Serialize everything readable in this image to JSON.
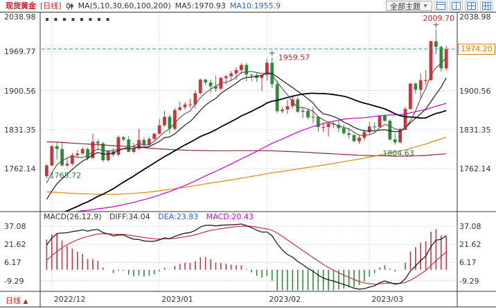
{
  "toolbar": {
    "symbol": "现货黄金",
    "period_tag": "[日线]",
    "ma_settings_label": "MA(5,10,30,60,100,200)",
    "ma5_label": "MA5:1970.93",
    "ma10_label": "MA10:1955.9",
    "themes_button_label": "全部主题",
    "themes_button_arrow": "▼"
  },
  "macd_header": {
    "title": "MACD(26,12,9)",
    "diff_label": "DIFF:34.04",
    "dea_label": "DEA:23.83",
    "macd_label": "MACD:20.43"
  },
  "price_tag": {
    "label": "1974.20"
  },
  "bottom_bar": {
    "period_tab": "日线",
    "arrow": "▲"
  },
  "colors": {
    "up": "#c5363e",
    "down": "#2e8b3a",
    "accent_red": "#cc2222",
    "blue": "#2b5fc0",
    "magenta": "#cc00cc",
    "teal_dashed": "#1aa0a0",
    "orange_tag": "#e08200",
    "grid": "#c8c8c8",
    "border": "#333333",
    "annotation_high": "#cc2222",
    "annotation_low": "#1e7d32",
    "diff_line": "#1c1c1c",
    "dea_line": "#c5363e",
    "ma_colors": {
      "5": "#5a5a5a",
      "10": "#1c1c1c",
      "30": "#000000",
      "60": "#cc00cc",
      "100": "#e08800",
      "200": "#8b2a2a"
    }
  },
  "chart_data": {
    "type": "candlestick",
    "title": "现货黄金 日线",
    "x_labels": [
      "2022/12",
      "2023/01",
      "2023/02",
      "2023/03"
    ],
    "price_tick_labels": [
      "2038.98",
      "1969.77",
      "1900.56",
      "1831.35",
      "1762.14"
    ],
    "price_ticks": [
      2038.98,
      1969.77,
      1900.56,
      1831.35,
      1762.14
    ],
    "macd_tick_labels": [
      "37.08",
      "21.62",
      "6.17",
      "-9.29"
    ],
    "macd_ticks": [
      37.08,
      21.62,
      6.17,
      -9.29
    ],
    "last_price": 1974.2,
    "ma_periods": [
      5,
      10,
      30,
      60,
      100,
      200
    ],
    "indicator_readout": {
      "ma5": 1970.93,
      "ma10": 1955.9,
      "diff": 34.04,
      "dea": 23.83,
      "macd": 20.43
    },
    "flag_marker_count": 8,
    "annotations": [
      {
        "label": "2009.70",
        "price": 2009.7,
        "index": 76,
        "type": "high"
      },
      {
        "label": "1959.57",
        "price": 1959.57,
        "index": 44,
        "type": "high"
      },
      {
        "label": "1804.63",
        "price": 1804.63,
        "index": 68,
        "type": "low"
      },
      {
        "label": "1765.72",
        "price": 1765.72,
        "index": 3,
        "type": "low"
      }
    ],
    "candles": {
      "dates": [
        "2022-11-30",
        "2022-12-01",
        "2022-12-02",
        "2022-12-05",
        "2022-12-06",
        "2022-12-07",
        "2022-12-08",
        "2022-12-09",
        "2022-12-12",
        "2022-12-13",
        "2022-12-14",
        "2022-12-15",
        "2022-12-16",
        "2022-12-19",
        "2022-12-20",
        "2022-12-21",
        "2022-12-22",
        "2022-12-23",
        "2022-12-27",
        "2022-12-28",
        "2022-12-29",
        "2022-12-30",
        "2023-01-03",
        "2023-01-04",
        "2023-01-05",
        "2023-01-06",
        "2023-01-09",
        "2023-01-10",
        "2023-01-11",
        "2023-01-12",
        "2023-01-13",
        "2023-01-16",
        "2023-01-17",
        "2023-01-18",
        "2023-01-19",
        "2023-01-20",
        "2023-01-23",
        "2023-01-24",
        "2023-01-25",
        "2023-01-26",
        "2023-01-27",
        "2023-01-30",
        "2023-01-31",
        "2023-02-01",
        "2023-02-02",
        "2023-02-03",
        "2023-02-06",
        "2023-02-07",
        "2023-02-08",
        "2023-02-09",
        "2023-02-10",
        "2023-02-13",
        "2023-02-14",
        "2023-02-15",
        "2023-02-16",
        "2023-02-17",
        "2023-02-20",
        "2023-02-21",
        "2023-02-22",
        "2023-02-23",
        "2023-02-24",
        "2023-02-27",
        "2023-02-28",
        "2023-03-01",
        "2023-03-02",
        "2023-03-03",
        "2023-03-06",
        "2023-03-07",
        "2023-03-08",
        "2023-03-09",
        "2023-03-10",
        "2023-03-13",
        "2023-03-14",
        "2023-03-15",
        "2023-03-16",
        "2023-03-17",
        "2023-03-20",
        "2023-03-21",
        "2023-03-22"
      ],
      "open": [
        1749,
        1768,
        1802,
        1797,
        1768,
        1771,
        1786,
        1789,
        1797,
        1781,
        1810,
        1807,
        1777,
        1793,
        1787,
        1818,
        1814,
        1792,
        1798,
        1813,
        1804,
        1815,
        1824,
        1839,
        1854,
        1833,
        1866,
        1871,
        1876,
        1876,
        1896,
        1920,
        1915,
        1908,
        1904,
        1923,
        1926,
        1931,
        1937,
        1946,
        1929,
        1928,
        1923,
        1928,
        1950,
        1912,
        1864,
        1867,
        1873,
        1885,
        1863,
        1865,
        1853,
        1854,
        1836,
        1836,
        1842,
        1840,
        1834,
        1825,
        1822,
        1811,
        1817,
        1827,
        1837,
        1836,
        1856,
        1847,
        1814,
        1809,
        1831,
        1868,
        1913,
        1902,
        1919,
        1919,
        1988,
        1978,
        1940
      ],
      "high": [
        1770,
        1804,
        1810,
        1810,
        1782,
        1790,
        1795,
        1800,
        1800,
        1824,
        1815,
        1810,
        1795,
        1798,
        1821,
        1820,
        1820,
        1808,
        1833,
        1818,
        1819,
        1826,
        1850,
        1865,
        1858,
        1870,
        1881,
        1880,
        1886,
        1901,
        1922,
        1921,
        1920,
        1927,
        1925,
        1928,
        1935,
        1942,
        1949,
        1949,
        1930,
        1932,
        1928,
        1957,
        1959.57,
        1918,
        1872,
        1884,
        1890,
        1890,
        1870,
        1867,
        1871,
        1856,
        1845,
        1847,
        1846,
        1848,
        1840,
        1835,
        1823,
        1822,
        1832,
        1845,
        1844,
        1856,
        1858,
        1850,
        1824,
        1835,
        1872,
        1914,
        1915,
        1931,
        1937,
        1989,
        2009.7,
        1980,
        1980
      ],
      "low": [
        1745,
        1766,
        1778,
        1765.72,
        1765,
        1768,
        1782,
        1787,
        1777,
        1780,
        1795,
        1774,
        1775,
        1783,
        1784,
        1810,
        1792,
        1790,
        1795,
        1801,
        1803,
        1813,
        1823,
        1836,
        1825,
        1830,
        1866,
        1867,
        1870,
        1869,
        1894,
        1910,
        1896,
        1898,
        1901,
        1911,
        1918,
        1920,
        1930,
        1917,
        1917,
        1916,
        1900,
        1918,
        1905,
        1861,
        1860,
        1859,
        1869,
        1861,
        1852,
        1850,
        1843,
        1828,
        1827,
        1819,
        1834,
        1827,
        1822,
        1815,
        1809,
        1806,
        1812,
        1824,
        1828,
        1835,
        1846,
        1812,
        1804.63,
        1806,
        1830,
        1867,
        1895,
        1885,
        1911,
        1918,
        1965,
        1934,
        1936
      ],
      "close": [
        1768,
        1802,
        1797,
        1768,
        1771,
        1786,
        1789,
        1797,
        1781,
        1810,
        1807,
        1777,
        1793,
        1787,
        1818,
        1814,
        1792,
        1798,
        1813,
        1804,
        1815,
        1824,
        1839,
        1854,
        1833,
        1866,
        1871,
        1876,
        1876,
        1896,
        1920,
        1915,
        1908,
        1904,
        1923,
        1926,
        1931,
        1937,
        1946,
        1929,
        1928,
        1923,
        1928,
        1950,
        1912,
        1864,
        1867,
        1873,
        1885,
        1863,
        1865,
        1853,
        1854,
        1836,
        1836,
        1842,
        1840,
        1834,
        1825,
        1822,
        1811,
        1817,
        1827,
        1837,
        1836,
        1856,
        1847,
        1814,
        1809,
        1831,
        1868,
        1913,
        1902,
        1919,
        1919,
        1988,
        1978,
        1940,
        1974.2
      ]
    },
    "history_closes_anchors": [
      1855,
      1898,
      1905,
      1910,
      1970,
      1950,
      1935,
      1925,
      1935,
      1950,
      1950,
      1940,
      1900,
      1870,
      1855,
      1815,
      1845,
      1855,
      1845,
      1850,
      1840,
      1830,
      1800,
      1740,
      1715,
      1745,
      1775,
      1790,
      1760,
      1730,
      1710,
      1665,
      1660,
      1645,
      1665,
      1670,
      1640,
      1630,
      1690,
      1745
    ]
  }
}
